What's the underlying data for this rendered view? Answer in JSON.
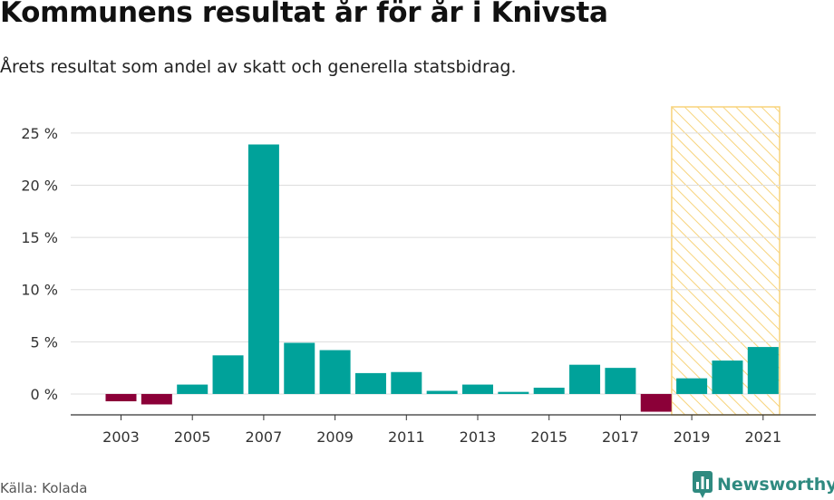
{
  "title": "Kommunens resultat år för år i Knivsta",
  "subtitle": "Årets resultat som andel av skatt och generella statsbidrag.",
  "source": "Källa: Kolada",
  "brand": {
    "name": "Newsworthy",
    "icon": "newsworthy-chart-bubble-icon"
  },
  "colors": {
    "positive": "#00a29a",
    "negative": "#8b0038",
    "highlight": "#f7cf6d",
    "grid": "#dddddd",
    "axis": "#333333",
    "brand": "#2f8a80"
  },
  "chart_data": {
    "type": "bar",
    "categories": [
      "2003",
      "2004",
      "2005",
      "2006",
      "2007",
      "2008",
      "2009",
      "2010",
      "2011",
      "2012",
      "2013",
      "2014",
      "2015",
      "2016",
      "2017",
      "2018",
      "2019",
      "2020",
      "2021"
    ],
    "values": [
      -0.7,
      -1.0,
      0.9,
      3.7,
      23.9,
      4.9,
      4.2,
      2.0,
      2.1,
      0.3,
      0.9,
      0.2,
      0.6,
      2.8,
      2.5,
      -1.7,
      1.5,
      3.2,
      4.5
    ],
    "x_tick_labels": [
      "2003",
      "2005",
      "2007",
      "2009",
      "2011",
      "2013",
      "2015",
      "2017",
      "2019",
      "2021"
    ],
    "y_ticks": [
      0,
      5,
      10,
      15,
      20,
      25
    ],
    "y_tick_labels": [
      "0 %",
      "5 %",
      "10 %",
      "15 %",
      "20 %",
      "25 %"
    ],
    "ylim": [
      -2.0,
      27.5
    ],
    "xlabel": "",
    "ylabel": "",
    "grid": true,
    "highlight_range": [
      "2019",
      "2021"
    ],
    "highlight_style": "hatched"
  }
}
